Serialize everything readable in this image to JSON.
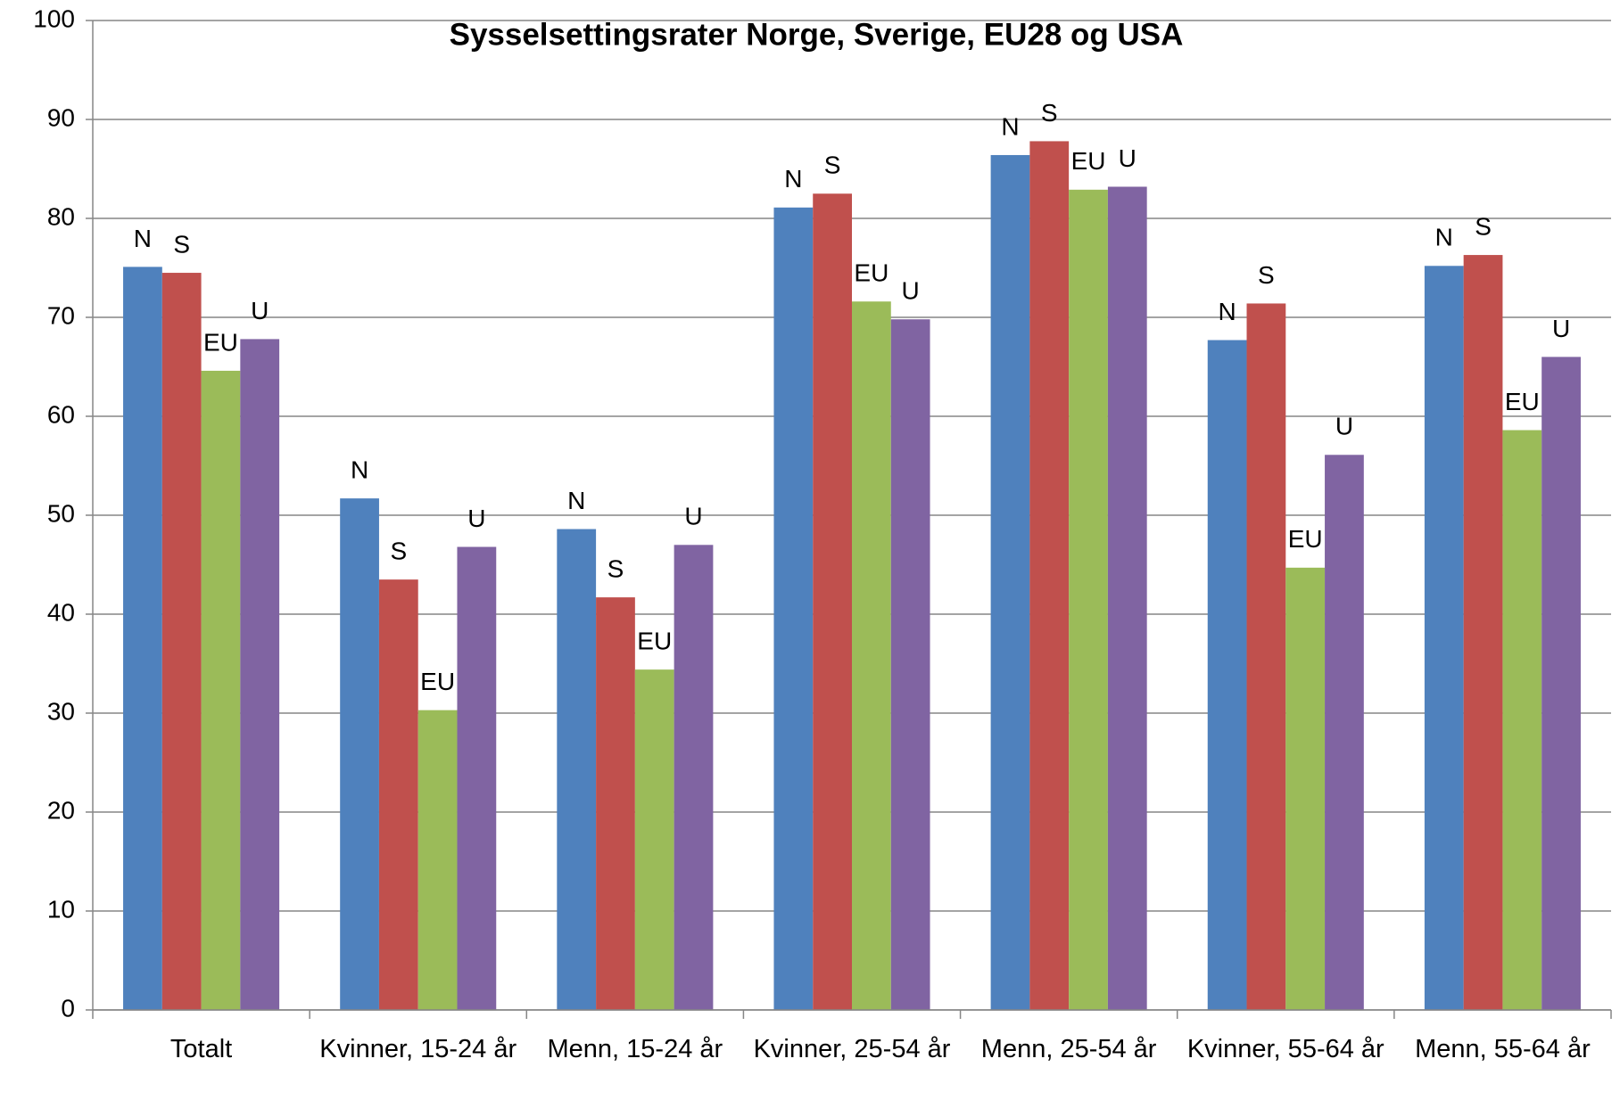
{
  "chart_data": {
    "type": "bar",
    "title": "Sysselsettingsrater Norge, Sverige, EU28 og USA",
    "categories": [
      "Totalt",
      "Kvinner, 15-24 år",
      "Menn, 15-24 år",
      "Kvinner, 25-54 år",
      "Menn, 25-54 år",
      "Kvinner, 55-64 år",
      "Menn, 55-64 år"
    ],
    "series": [
      {
        "name": "N",
        "color": "#4f81bd",
        "values": [
          75.1,
          51.7,
          48.6,
          81.1,
          86.4,
          67.7,
          75.2
        ]
      },
      {
        "name": "S",
        "color": "#c0504d",
        "values": [
          74.5,
          43.5,
          41.7,
          82.5,
          87.8,
          71.4,
          76.3
        ]
      },
      {
        "name": "EU",
        "color": "#9bbb59",
        "values": [
          64.6,
          30.3,
          34.4,
          71.6,
          82.9,
          44.7,
          58.6
        ]
      },
      {
        "name": "U",
        "color": "#8064a2",
        "values": [
          67.8,
          46.8,
          47.0,
          69.8,
          83.2,
          56.1,
          66.0
        ]
      }
    ],
    "ylim": [
      0,
      100
    ],
    "yticks": [
      0,
      10,
      20,
      30,
      40,
      50,
      60,
      70,
      80,
      90,
      100
    ],
    "grid": true
  }
}
